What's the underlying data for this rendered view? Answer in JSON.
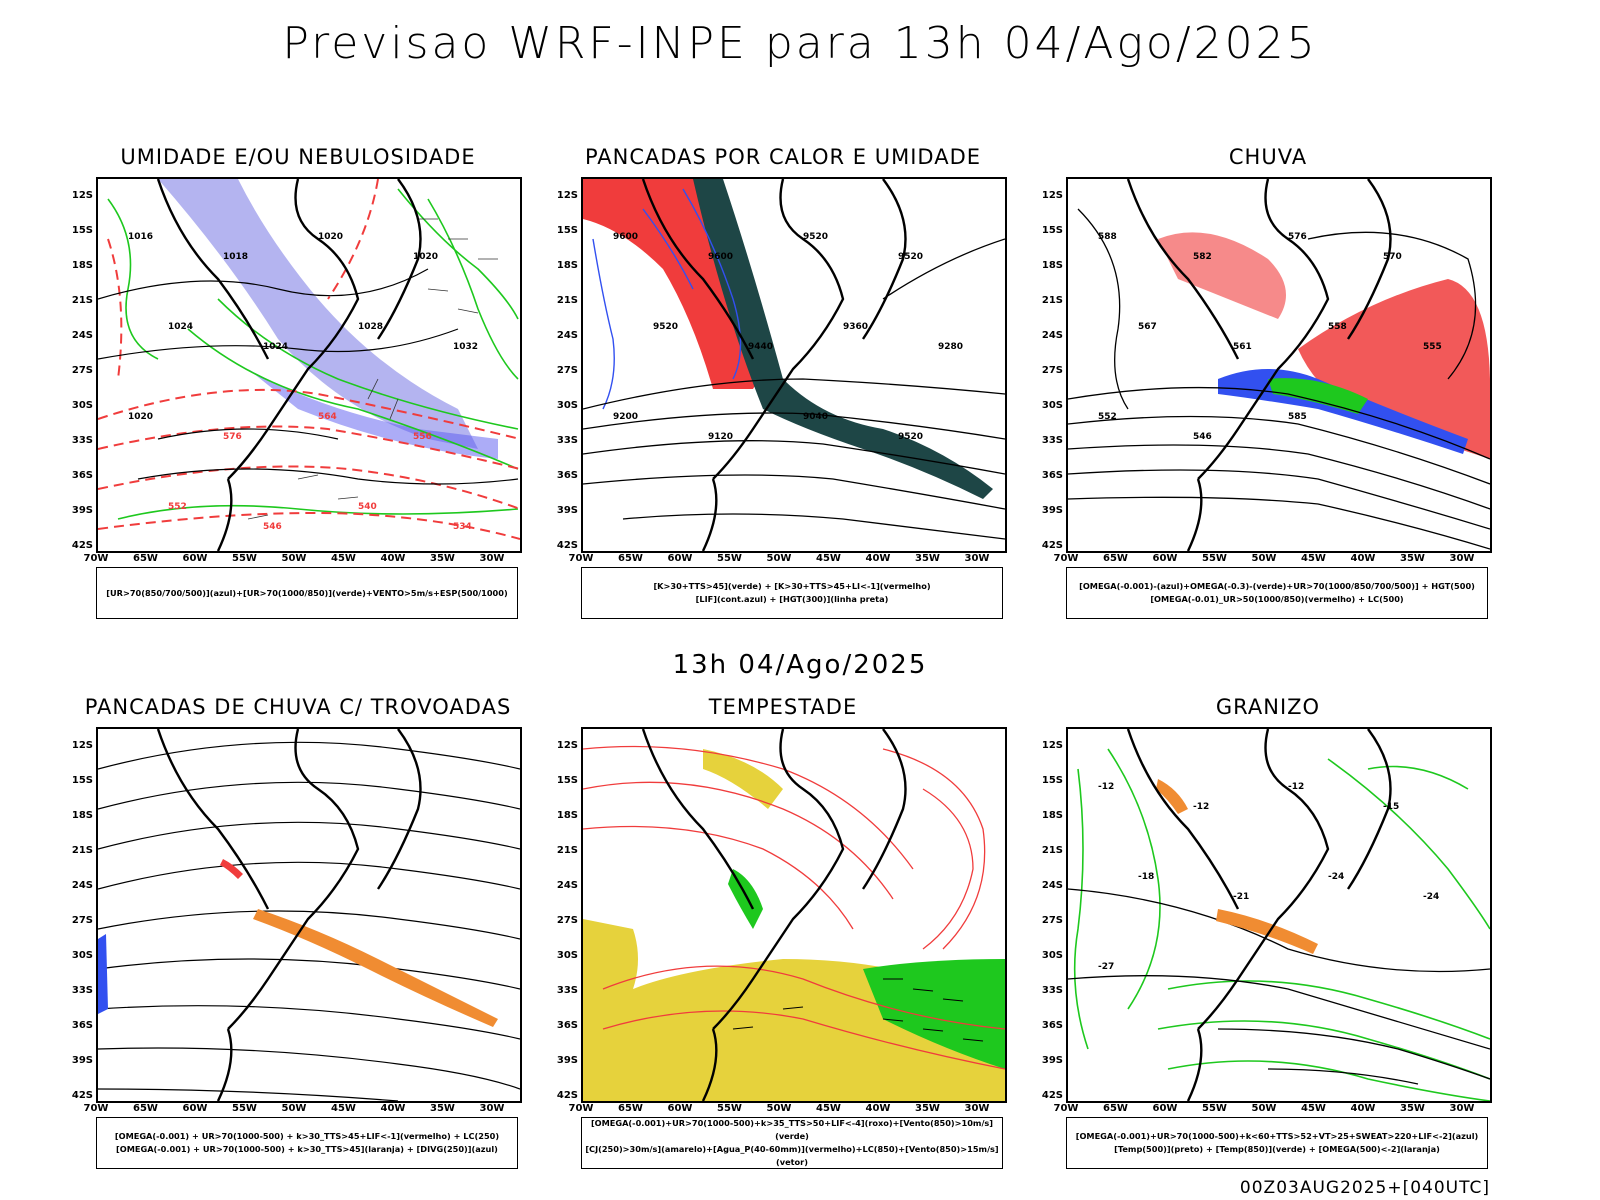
{
  "title": "Previsao WRF-INPE  para 13h 04/Ago/2025",
  "mid_date": "13h 04/Ago/2025",
  "footer": "00Z03AUG2025+[040UTC]",
  "axes": {
    "lat_labels": [
      "12S",
      "15S",
      "18S",
      "21S",
      "24S",
      "27S",
      "30S",
      "33S",
      "36S",
      "39S",
      "42S"
    ],
    "lon_labels": [
      "70W",
      "65W",
      "60W",
      "55W",
      "50W",
      "45W",
      "40W",
      "35W",
      "30W"
    ]
  },
  "panels": [
    {
      "title": "UMIDADE E/OU NEBULOSIDADE",
      "legend": [
        "[UR>70(850/700/500)](azul)+[UR>70(1000/850)](verde)+VENTO>5m/s+ESP(500/1000)"
      ],
      "contour_labels": [
        "1016",
        "1018",
        "1020",
        "1020",
        "1024",
        "1024",
        "1028",
        "1032",
        "1020",
        "576",
        "564",
        "556",
        "552",
        "546",
        "540",
        "534"
      ]
    },
    {
      "title": "PANCADAS POR CALOR E UMIDADE",
      "legend": [
        "[K>30+TTS>45](verde) + [K>30+TTS>45+LI<-1](vermelho)",
        "[LIF](cont.azul) + [HGT(300)](linha preta)"
      ],
      "contour_labels": [
        "9600",
        "9600",
        "9520",
        "9520",
        "9520",
        "9440",
        "9360",
        "9280",
        "9200",
        "9120",
        "9040",
        "9520"
      ]
    },
    {
      "title": "CHUVA",
      "legend": [
        "[OMEGA(-0.001)-(azul)+OMEGA(-0.3)-(verde)+UR>70(1000/850/700/500)] + HGT(500)",
        "[OMEGA(-0.01)_UR>50(1000/850)(vermelho) + LC(500)"
      ],
      "contour_labels": [
        "588",
        "582",
        "576",
        "570",
        "567",
        "561",
        "558",
        "555",
        "552",
        "546",
        "585"
      ]
    },
    {
      "title": "PANCADAS DE CHUVA C/ TROVOADAS",
      "legend": [
        "[OMEGA(-0.001) + UR>70(1000-500) + k>30_TTS>45+LIF<-1](vermelho) + LC(250)",
        "[OMEGA(-0.001) + UR>70(1000-500) + k>30_TTS>45](laranja) + [DIVG(250)](azul)"
      ],
      "contour_labels": []
    },
    {
      "title": "TEMPESTADE",
      "legend": [
        "[OMEGA(-0.001)+UR>70(1000-500)+k>35_TTS>50+LIF<-4](roxo)+[Vento(850)>10m/s](verde)",
        "[CJ(250)>30m/s](amarelo)+[Agua_P(40-60mm)](vermelho)+LC(850)+[Vento(850)>15m/s](vetor)"
      ],
      "contour_labels": []
    },
    {
      "title": "GRANIZO",
      "legend": [
        "[OMEGA(-0.001)+UR>70(1000-500)+k<60+TTS>52+VT>25+SWEAT>220+LIF<-2](azul)",
        "[Temp(500)](preto) + [Temp(850)](verde) + [OMEGA(500)<-2](laranja)"
      ],
      "contour_labels": [
        "-12",
        "-12",
        "-12",
        "-15",
        "-18",
        "-21",
        "-24",
        "-24",
        "-27"
      ]
    }
  ],
  "colors": {
    "blue_fill": "#b4b4f0",
    "green": "#1ec81e",
    "red": "#f03c3c",
    "dark_teal": "#1e4646",
    "yellow": "#e6d23c",
    "orange": "#f08c32",
    "blue": "#3250f0",
    "black": "#000000"
  }
}
